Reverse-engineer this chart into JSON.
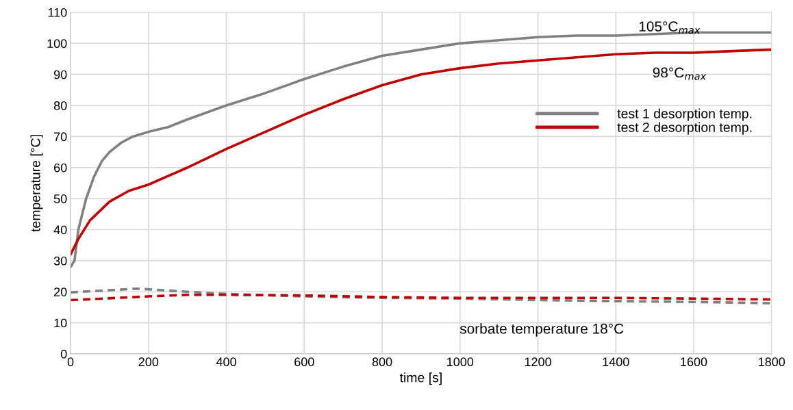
{
  "chart_data": {
    "type": "line",
    "xlabel": "time [s]",
    "ylabel": "temperature [°C]",
    "xlim": [
      0,
      1800
    ],
    "xticks": [
      0,
      200,
      400,
      600,
      800,
      1000,
      1200,
      1400,
      1600,
      1800
    ],
    "ylim": [
      0,
      110
    ],
    "yticks": [
      0,
      10,
      20,
      30,
      40,
      50,
      60,
      70,
      80,
      90,
      100,
      110
    ],
    "grid": true,
    "legend": "right",
    "marker": "none",
    "annotations": [
      "105°C$_{max}$",
      "98°C$_{max}$",
      "sorbate temperature 18°C"
    ],
    "series": [
      {
        "name": "test 1 desorption temp.",
        "color": "#808080",
        "line_style": "solid",
        "x": [
          0,
          10,
          20,
          40,
          60,
          80,
          100,
          130,
          160,
          200,
          250,
          300,
          400,
          500,
          600,
          700,
          800,
          900,
          1000,
          1100,
          1200,
          1300,
          1400,
          1500,
          1600,
          1700,
          1800
        ],
        "values": [
          28,
          30,
          40,
          50,
          57,
          62,
          65,
          68,
          70,
          71.5,
          73,
          75.5,
          80,
          84,
          88.5,
          92.5,
          96,
          98,
          100,
          101,
          102,
          102.5,
          102.5,
          103,
          103.5,
          103.5,
          103.5
        ]
      },
      {
        "name": "test 2 desorption temp.",
        "color": "#c00000",
        "line_style": "solid",
        "x": [
          0,
          20,
          50,
          100,
          150,
          200,
          300,
          400,
          500,
          600,
          700,
          800,
          900,
          1000,
          1100,
          1200,
          1300,
          1400,
          1500,
          1600,
          1700,
          1800
        ],
        "values": [
          32,
          37,
          43,
          49,
          52.5,
          54.5,
          60,
          66,
          71.5,
          77,
          82,
          86.5,
          90,
          92,
          93.5,
          94.5,
          95.5,
          96.5,
          97,
          97,
          97.5,
          98
        ]
      },
      {
        "color": "#808080",
        "line_style": "dashed",
        "x": [
          0,
          100,
          170,
          300,
          400,
          600,
          800,
          1000,
          1200,
          1400,
          1600,
          1800
        ],
        "values": [
          19.8,
          20.5,
          21,
          20,
          19.3,
          18.5,
          18,
          17.8,
          17.3,
          17,
          16.7,
          16.3
        ]
      },
      {
        "color": "#c00000",
        "line_style": "dashed",
        "x": [
          0,
          200,
          300,
          400,
          600,
          800,
          1000,
          1200,
          1400,
          1600,
          1800
        ],
        "values": [
          17.3,
          18.5,
          19,
          19,
          18.8,
          18.3,
          18,
          18,
          18,
          17.8,
          17.5
        ]
      }
    ]
  }
}
